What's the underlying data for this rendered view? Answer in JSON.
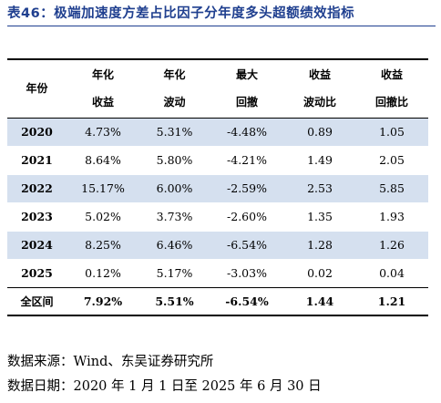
{
  "title": "表46：极端加速度方差占比因子分年度多头超额绩效指标",
  "table": {
    "headers": [
      [
        "年份"
      ],
      [
        "年化",
        "收益"
      ],
      [
        "年化",
        "波动"
      ],
      [
        "最大",
        "回撤"
      ],
      [
        "收益",
        "波动比"
      ],
      [
        "收益",
        "回撤比"
      ]
    ],
    "rows": [
      [
        "2020",
        "4.73%",
        "5.31%",
        "-4.48%",
        "0.89",
        "1.05"
      ],
      [
        "2021",
        "8.64%",
        "5.80%",
        "-4.21%",
        "1.49",
        "2.05"
      ],
      [
        "2022",
        "15.17%",
        "6.00%",
        "-2.59%",
        "2.53",
        "5.85"
      ],
      [
        "2023",
        "5.02%",
        "3.73%",
        "-2.60%",
        "1.35",
        "1.93"
      ],
      [
        "2024",
        "8.25%",
        "6.46%",
        "-6.54%",
        "1.28",
        "1.26"
      ],
      [
        "2025",
        "0.12%",
        "5.17%",
        "-3.03%",
        "0.02",
        "0.04"
      ]
    ],
    "total": [
      "全区间",
      "7.92%",
      "5.51%",
      "-6.54%",
      "1.44",
      "1.21"
    ]
  },
  "notes": {
    "source": "数据来源：Wind、东吴证券研究所",
    "date": "数据日期：2020 年 1 月 1 日至 2025 年 6 月 30 日"
  },
  "colors": {
    "title": "#1f3f8f",
    "shade": "#d5e0ef"
  }
}
